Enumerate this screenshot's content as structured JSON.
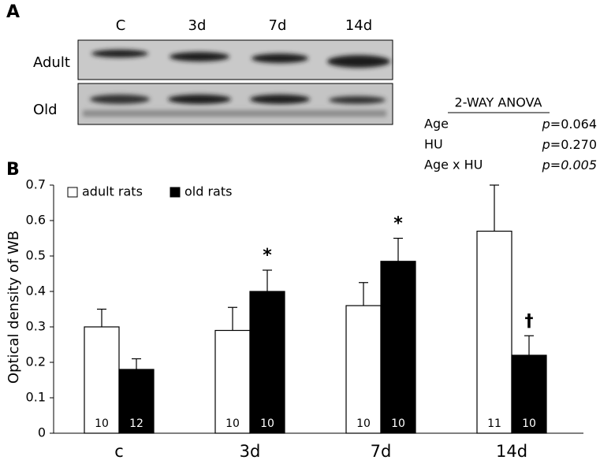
{
  "panel_a": {
    "label": "A",
    "lanes": [
      "C",
      "3d",
      "7d",
      "14d"
    ],
    "rows": [
      "Adult",
      "Old"
    ]
  },
  "anova": {
    "title": "2-WAY ANOVA",
    "rows": [
      [
        "Age",
        "p",
        "=0.064"
      ],
      [
        "HU",
        "p",
        "=0.270"
      ],
      [
        "Age x HU",
        "p",
        "=0.005"
      ]
    ]
  },
  "chart_data": {
    "type": "bar",
    "panel_label": "B",
    "y_label": "Optical density of WB",
    "categories": [
      "c",
      "3d",
      "7d",
      "14d"
    ],
    "series": [
      {
        "name": "adult rats",
        "color": "#ffffff",
        "values": [
          0.3,
          0.29,
          0.36,
          0.57
        ],
        "errors": [
          0.05,
          0.065,
          0.065,
          0.13
        ],
        "n": [
          "10",
          "10",
          "10",
          "11"
        ]
      },
      {
        "name": "old rats",
        "color": "#000000",
        "values": [
          0.18,
          0.4,
          0.485,
          0.22
        ],
        "errors": [
          0.03,
          0.06,
          0.065,
          0.055
        ],
        "n": [
          "12",
          "10",
          "10",
          "10"
        ],
        "markers": [
          null,
          "*",
          "*",
          "†"
        ]
      }
    ],
    "ylim": [
      0,
      0.7
    ],
    "yticks": [
      0,
      0.1,
      0.2,
      0.3,
      0.4,
      0.5,
      0.6,
      0.7
    ],
    "legend": "top-left"
  }
}
